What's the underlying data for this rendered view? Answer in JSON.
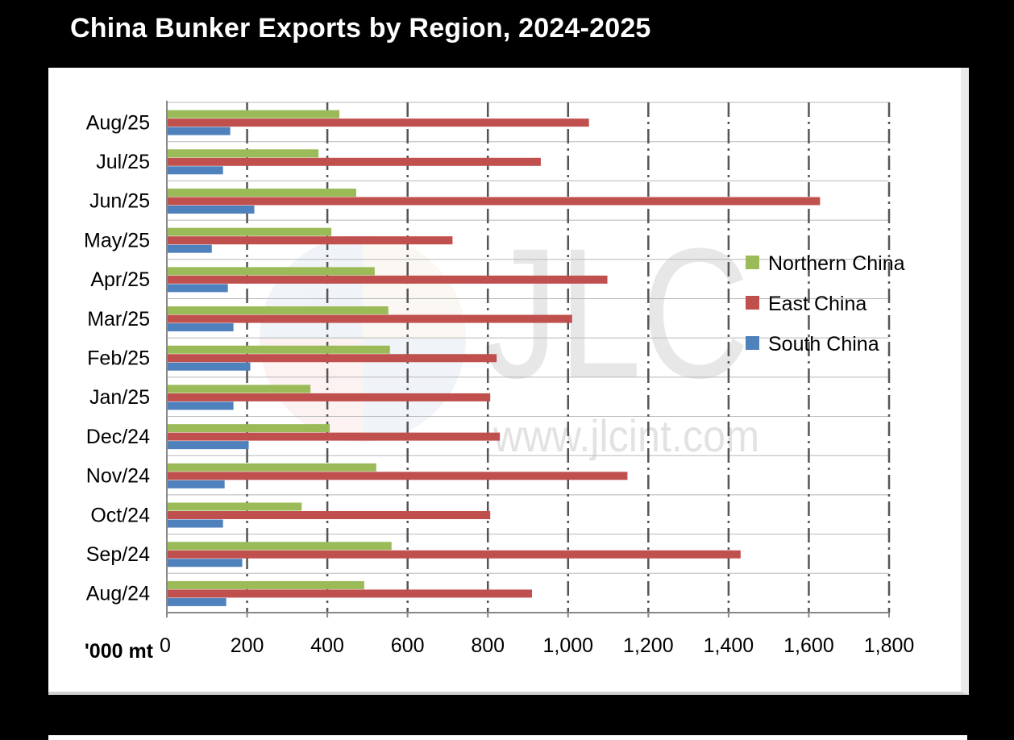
{
  "title": "China Bunker Exports by Region, 2024-2025",
  "chart_data": {
    "type": "bar",
    "orientation": "horizontal",
    "title": "China Bunker Exports by Region, 2024-2025",
    "xlabel": "'000 mt",
    "ylabel": "",
    "xlim": [
      0,
      1800
    ],
    "xticks": [
      "0",
      "200",
      "400",
      "600",
      "800",
      "1,000",
      "1,200",
      "1,400",
      "1,600",
      "1,800"
    ],
    "xtick_values": [
      0,
      200,
      400,
      600,
      800,
      1000,
      1200,
      1400,
      1600,
      1800
    ],
    "grid": true,
    "legend_position": "right",
    "categories": [
      "Aug/25",
      "Jul/25",
      "Jun/25",
      "May/25",
      "Apr/25",
      "Mar/25",
      "Feb/25",
      "Jan/25",
      "Dec/24",
      "Nov/24",
      "Oct/24",
      "Sep/24",
      "Aug/24"
    ],
    "series": [
      {
        "name": "Northern China",
        "color": "#9bbb59",
        "values": [
          430,
          378,
          472,
          410,
          518,
          552,
          556,
          358,
          406,
          522,
          336,
          560,
          492
        ]
      },
      {
        "name": "East China",
        "color": "#c0504d",
        "values": [
          1052,
          932,
          1628,
          712,
          1098,
          1010,
          822,
          806,
          830,
          1148,
          806,
          1430,
          910
        ]
      },
      {
        "name": "South China",
        "color": "#4f81bd",
        "values": [
          158,
          140,
          218,
          112,
          152,
          166,
          208,
          166,
          204,
          144,
          140,
          188,
          148
        ]
      }
    ]
  },
  "watermark": {
    "logo_text": "JLC",
    "url_text": "www.jlcint.com"
  }
}
